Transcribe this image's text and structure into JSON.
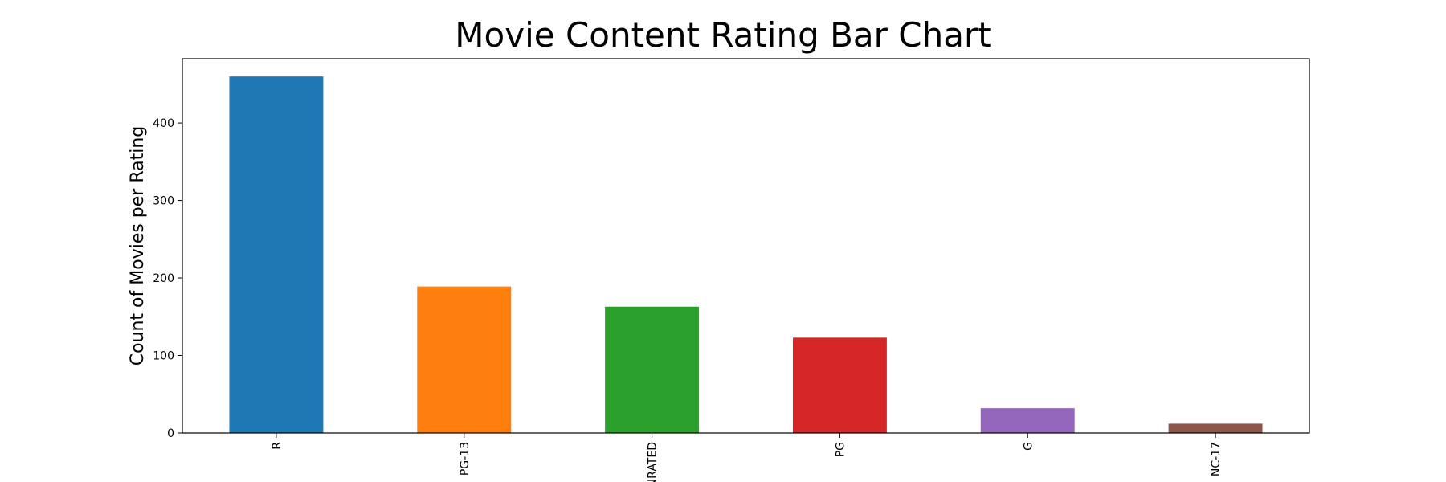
{
  "chart_data": {
    "type": "bar",
    "title": "Movie Content Rating Bar Chart",
    "xlabel": "",
    "ylabel": "Count of Movies per Rating",
    "categories": [
      "R",
      "PG-13",
      "UNRATED",
      "PG",
      "G",
      "NC-17"
    ],
    "values": [
      460,
      189,
      163,
      123,
      32,
      12
    ],
    "colors": [
      "#1f77b4",
      "#ff7f0e",
      "#2ca02c",
      "#d62728",
      "#9467bd",
      "#8c564b"
    ],
    "ylim": [
      0,
      483
    ],
    "yticks": [
      0,
      100,
      200,
      300,
      400
    ],
    "grid": false,
    "legend": "none"
  }
}
